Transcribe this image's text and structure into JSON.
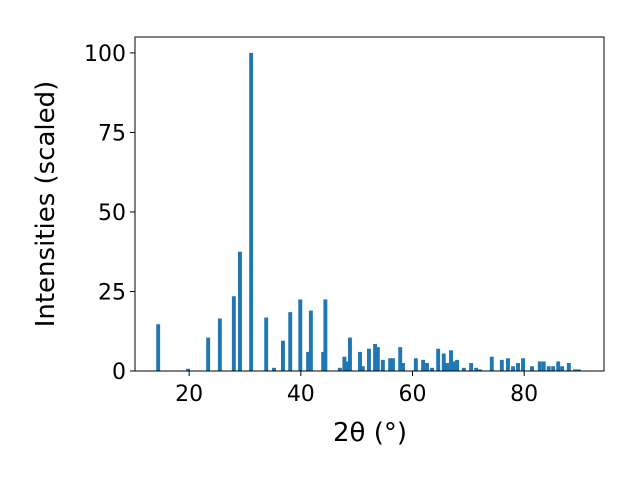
{
  "chart_data": {
    "type": "bar",
    "xlabel": "2θ (°)",
    "ylabel": "Intensities (scaled)",
    "color": "#1f77b4",
    "x": [
      14.45,
      19.8,
      23.4,
      25.5,
      28.0,
      29.1,
      31.1,
      33.8,
      35.2,
      36.8,
      38.1,
      39.9,
      41.3,
      41.8,
      44.0,
      44.4,
      47.0,
      47.8,
      48.3,
      48.8,
      50.6,
      51.1,
      52.2,
      53.3,
      53.8,
      54.7,
      56.0,
      56.5,
      57.8,
      58.3,
      60.6,
      61.9,
      62.6,
      63.5,
      64.6,
      65.6,
      66.2,
      66.9,
      67.5,
      68.0,
      69.2,
      70.5,
      71.4,
      72.1,
      74.2,
      76.0,
      77.1,
      78.0,
      78.9,
      79.8,
      81.4,
      82.8,
      83.5,
      84.4,
      85.2,
      86.1,
      86.8,
      88.0,
      89.1,
      89.8
    ],
    "values": [
      14.7,
      0.7,
      10.5,
      16.5,
      23.5,
      37.5,
      100,
      16.8,
      1,
      9.5,
      18.5,
      22.5,
      6,
      19,
      6,
      22.5,
      1,
      4.5,
      3,
      10.5,
      6,
      1.5,
      7,
      8.5,
      7.5,
      3.5,
      4,
      4,
      7.5,
      2.5,
      4,
      3.5,
      2.5,
      1,
      7,
      5.5,
      2.5,
      6.5,
      3,
      3.5,
      1,
      2.5,
      1,
      0.5,
      4.5,
      3.5,
      4,
      1.5,
      2.5,
      4,
      1.5,
      3,
      3,
      1.5,
      1.5,
      3,
      1.5,
      2.5,
      0.5,
      0.5
    ],
    "xlim": [
      10.3,
      94.3
    ],
    "xticks": [
      20,
      40,
      60,
      80
    ],
    "ylim": [
      0,
      105
    ],
    "yticks": [
      0,
      25,
      50,
      75,
      100
    ]
  }
}
